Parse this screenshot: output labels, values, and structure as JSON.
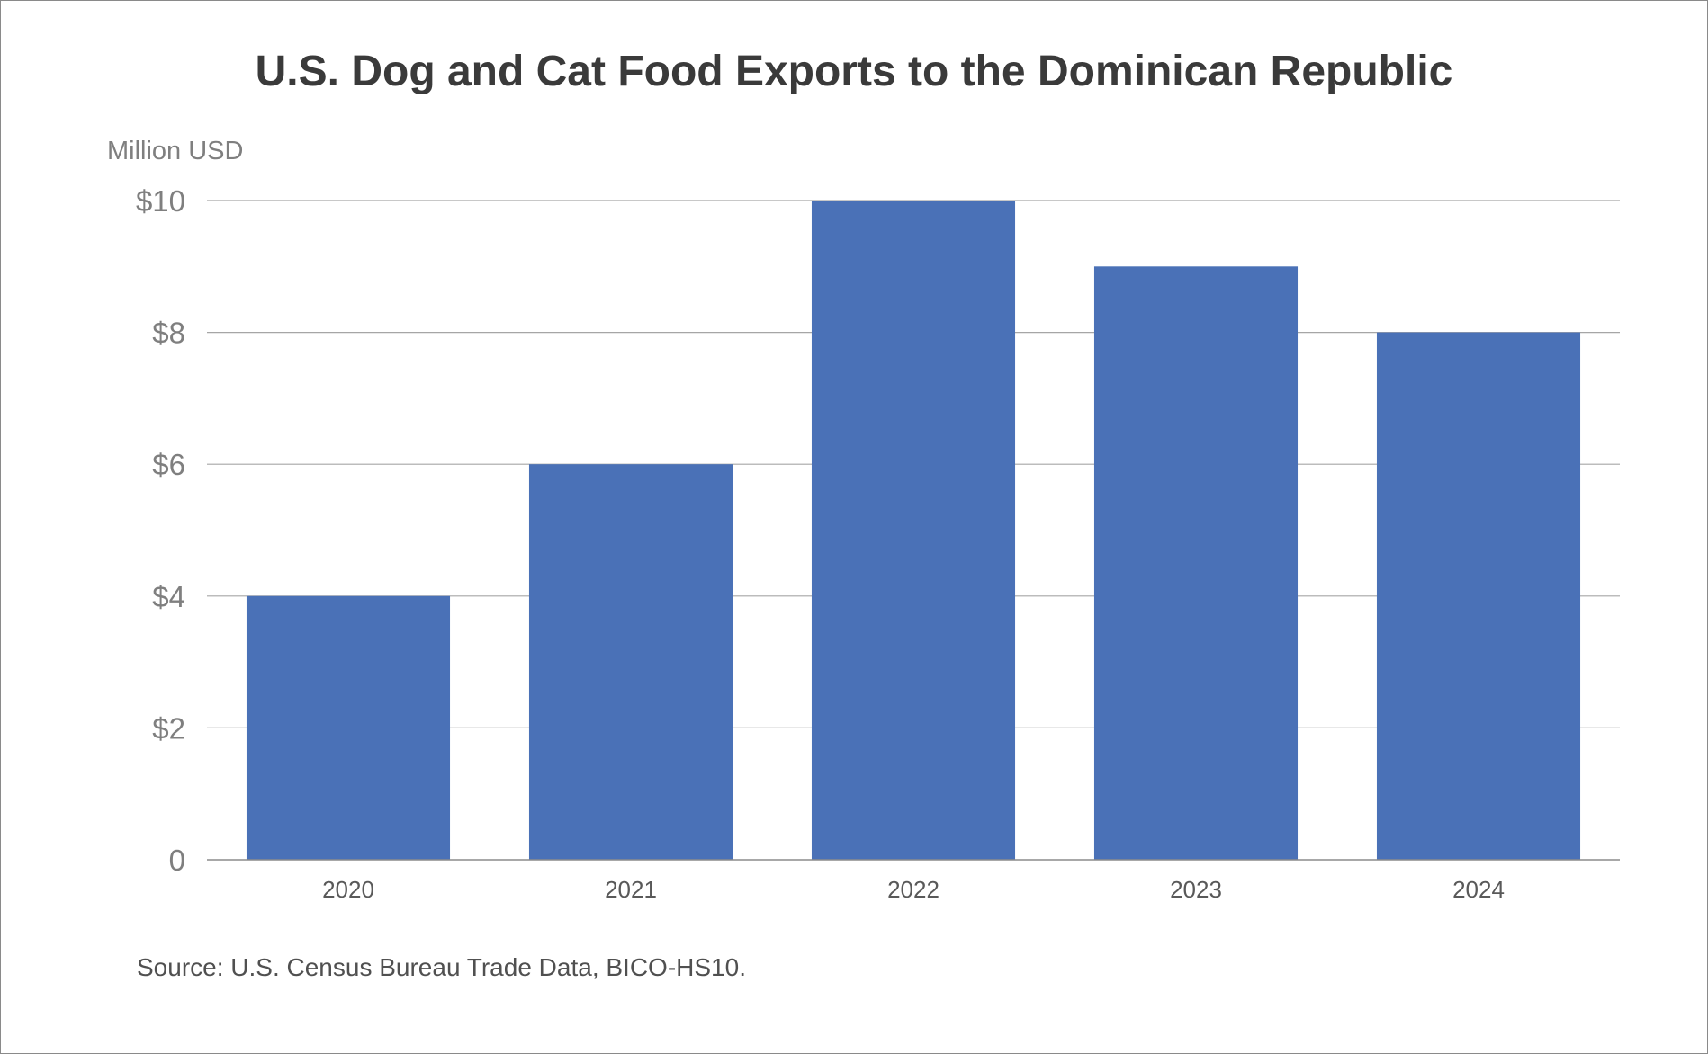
{
  "chart_data": {
    "type": "bar",
    "title": "U.S. Dog and Cat Food Exports to the Dominican Republic",
    "ylabel": "Million USD",
    "xlabel": "",
    "categories": [
      "2020",
      "2021",
      "2022",
      "2023",
      "2024"
    ],
    "values": [
      4,
      6,
      10,
      9,
      8
    ],
    "ylim": [
      0,
      10
    ],
    "yticks": [
      0,
      2,
      4,
      6,
      8,
      10
    ],
    "ytick_labels": [
      "0",
      "$2",
      "$4",
      "$6",
      "$8",
      "$10"
    ],
    "grid": true,
    "legend": "none",
    "bar_color": "#4a71b7",
    "source": "Source: U.S. Census Bureau Trade Data, BICO-HS10."
  }
}
